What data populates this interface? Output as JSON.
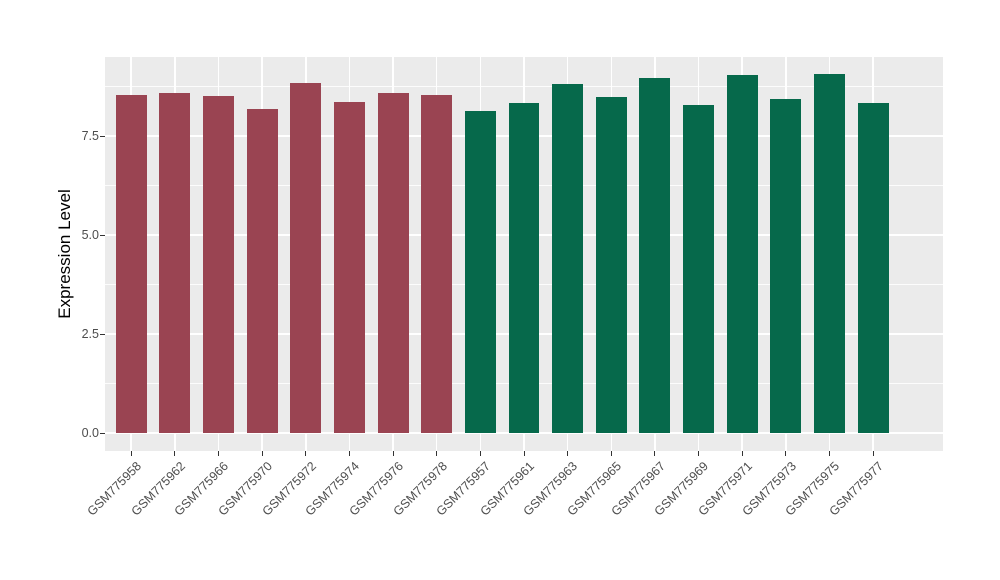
{
  "chart_data": {
    "type": "bar",
    "title": "",
    "xlabel": "",
    "ylabel": "Expression Level",
    "categories": [
      "GSM775958",
      "GSM775962",
      "GSM775966",
      "GSM775970",
      "GSM775972",
      "GSM775974",
      "GSM775976",
      "GSM775978",
      "GSM775957",
      "GSM775961",
      "GSM775963",
      "GSM775965",
      "GSM775967",
      "GSM775969",
      "GSM775971",
      "GSM775973",
      "GSM775975",
      "GSM775977"
    ],
    "values": [
      8.54,
      8.6,
      8.52,
      8.18,
      8.84,
      8.37,
      8.59,
      8.55,
      8.14,
      8.35,
      8.81,
      8.48,
      8.96,
      8.28,
      9.04,
      8.45,
      9.06,
      8.35
    ],
    "bar_group_per_category": [
      "group1",
      "group1",
      "group1",
      "group1",
      "group1",
      "group1",
      "group1",
      "group1",
      "group2",
      "group2",
      "group2",
      "group2",
      "group2",
      "group2",
      "group2",
      "group2",
      "group2",
      "group2"
    ],
    "group_colors": {
      "group1": "#9A4452",
      "group2": "#06694B"
    },
    "panel_background": "#EBEBEB",
    "gridline_color": "#FFFFFF",
    "axis_text_color": "#4D4D4D",
    "y_major_ticks": [
      0.0,
      2.5,
      5.0,
      7.5
    ],
    "y_tick_labels": [
      "0.0",
      "2.5",
      "5.0",
      "7.5"
    ],
    "y_minor_gridlines": [
      1.25,
      3.75,
      6.25,
      8.75
    ],
    "ylim": [
      -0.45,
      9.5
    ],
    "bar_width_fraction": 0.71,
    "grid": true,
    "legend_position": "none",
    "x_label_angle_degrees": 45
  }
}
